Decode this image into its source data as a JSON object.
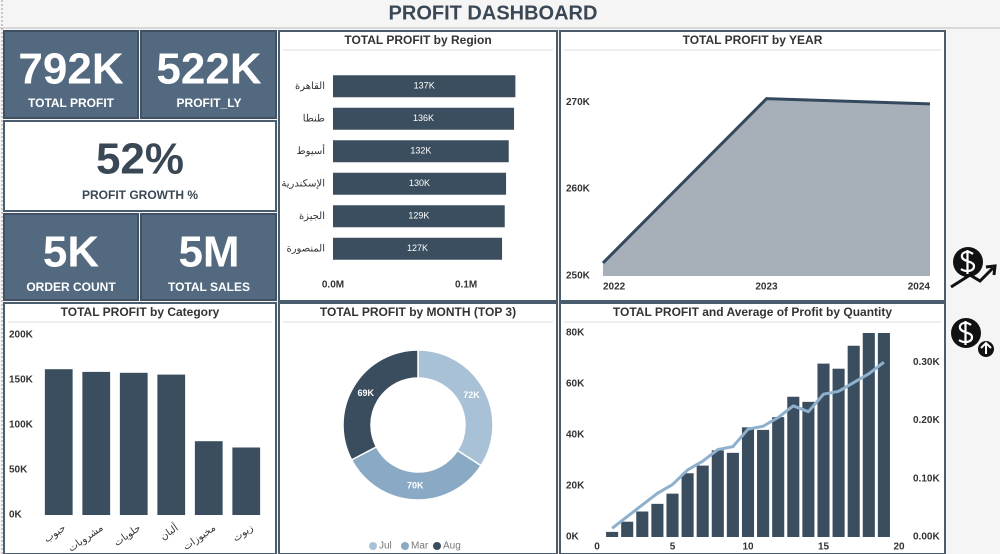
{
  "header": {
    "title": "PROFIT DASHBOARD"
  },
  "kpis": [
    {
      "value": "792K",
      "label": "TOTAL PROFIT"
    },
    {
      "value": "522K",
      "label": "PROFIT_LY"
    },
    {
      "value": "52%",
      "label": "PROFIT GROWTH %"
    },
    {
      "value": "5K",
      "label": "ORDER COUNT"
    },
    {
      "value": "5M",
      "label": "TOTAL SALES"
    }
  ],
  "chart_data": [
    {
      "type": "hbar",
      "title": "TOTAL PROFIT by Region",
      "categories": [
        "القاهرة",
        "طنطا",
        "أسيوط",
        "الإسكندرية",
        "الجيزة",
        "المنصورة"
      ],
      "values": [
        137000,
        136000,
        132000,
        130000,
        129000,
        127000
      ],
      "value_labels": [
        "137K",
        "136K",
        "132K",
        "130K",
        "129K",
        "127K"
      ],
      "color": "#3b4e5f",
      "xlim": [
        0,
        160000
      ],
      "xticks": [
        {
          "value": 0,
          "label": "0.0M"
        },
        {
          "value": 100000,
          "label": "0.1M"
        }
      ]
    },
    {
      "type": "area",
      "title": "TOTAL PROFIT by YEAR",
      "x": [
        2022,
        2023,
        2024
      ],
      "values": [
        251500,
        270400,
        269800
      ],
      "color": "#a7b0b9",
      "line_color": "#34495e",
      "xlim": [
        2022,
        2024
      ],
      "xticks": [
        2022,
        2023,
        2024
      ],
      "ylim": [
        250000,
        276000
      ],
      "yticks": [
        {
          "value": 250000,
          "label": "250K"
        },
        {
          "value": 260000,
          "label": "260K"
        },
        {
          "value": 270000,
          "label": "270K"
        }
      ]
    },
    {
      "type": "bar",
      "title": "TOTAL PROFIT by Category",
      "categories": [
        "حبوب",
        "مشروبات",
        "حلويات",
        "ألبان",
        "مخبوزات",
        "زيوت"
      ],
      "values": [
        162000,
        159000,
        158000,
        156000,
        82000,
        75000
      ],
      "color": "#3b4e5f",
      "ylim": [
        0,
        200000
      ],
      "yticks": [
        {
          "value": 0,
          "label": "0K"
        },
        {
          "value": 50000,
          "label": "50K"
        },
        {
          "value": 100000,
          "label": "100K"
        },
        {
          "value": 150000,
          "label": "150K"
        },
        {
          "value": 200000,
          "label": "200K"
        }
      ]
    },
    {
      "type": "donut",
      "title": "TOTAL PROFIT by MONTH (TOP 3)",
      "categories": [
        "Jul",
        "Mar",
        "Aug"
      ],
      "values": [
        72000,
        70000,
        69000
      ],
      "value_labels": [
        "72K",
        "70K",
        "69K"
      ],
      "colors": [
        "#a9c1d6",
        "#8aa9c5",
        "#3a4d5e"
      ]
    },
    {
      "type": "combo",
      "title": "TOTAL PROFIT and Average of Profit by Quantity",
      "x": [
        1,
        2,
        3,
        4,
        5,
        6,
        7,
        8,
        9,
        10,
        11,
        12,
        13,
        14,
        15,
        16,
        17,
        18,
        19
      ],
      "series": [
        {
          "type": "bar",
          "color": "#3b4e5f",
          "values": [
            2000,
            6000,
            10000,
            13000,
            17000,
            25000,
            28000,
            34000,
            33000,
            43000,
            42000,
            47000,
            55000,
            53000,
            68000,
            66000,
            75000,
            80000,
            80000
          ]
        },
        {
          "type": "line",
          "axis": "y2",
          "color": "#8fb0cc",
          "values": [
            15,
            35,
            55,
            75,
            90,
            115,
            130,
            150,
            155,
            185,
            190,
            205,
            225,
            215,
            245,
            250,
            265,
            280,
            300
          ]
        }
      ],
      "xlim": [
        0,
        20
      ],
      "xticks": [
        0,
        5,
        10,
        15,
        20
      ],
      "ylim": [
        0,
        80000
      ],
      "yticks": [
        {
          "value": 0,
          "label": "0K"
        },
        {
          "value": 20000,
          "label": "20K"
        },
        {
          "value": 40000,
          "label": "40K"
        },
        {
          "value": 60000,
          "label": "60K"
        },
        {
          "value": 80000,
          "label": "80K"
        }
      ],
      "y2lim": [
        0,
        350
      ],
      "y2ticks": [
        {
          "value": 0,
          "label": "0.00K"
        },
        {
          "value": 100,
          "label": "0.10K"
        },
        {
          "value": 200,
          "label": "0.20K"
        },
        {
          "value": 300,
          "label": "0.30K"
        }
      ]
    }
  ]
}
